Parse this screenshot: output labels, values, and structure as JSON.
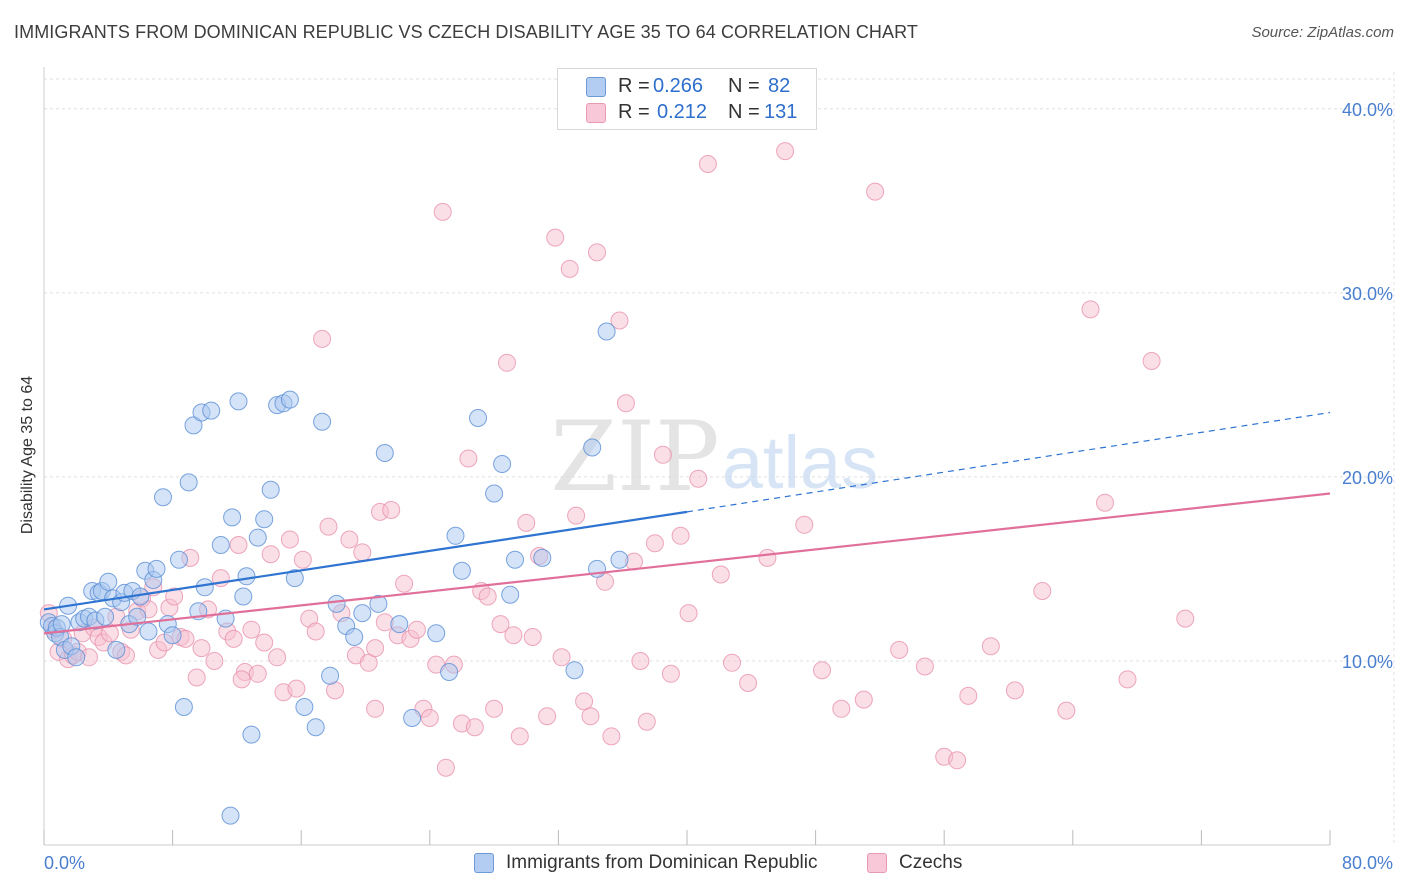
{
  "title": "IMMIGRANTS FROM DOMINICAN REPUBLIC VS CZECH DISABILITY AGE 35 TO 64 CORRELATION CHART",
  "source": "Source: ZipAtlas.com",
  "watermark": {
    "zip": "ZIP",
    "atlas": "atlas"
  },
  "legend_stats": [
    {
      "r_label": "R =",
      "r_value": "0.266",
      "n_label": "N =",
      "n_value": "82"
    },
    {
      "r_label": "R =",
      "r_value": "0.212",
      "n_label": "N =",
      "n_value": "131"
    }
  ],
  "colors": {
    "blue_fill": "#a9c8f0",
    "blue_stroke": "#5b8fd6",
    "blue_line": "#2e74d0",
    "pink_fill": "#f6bfd0",
    "pink_stroke": "#e892ae",
    "pink_line": "#e0709a",
    "tick_label": "#4a7fcf",
    "grid": "#e0e0e0"
  },
  "chart_data": {
    "type": "scatter",
    "title": "IMMIGRANTS FROM DOMINICAN REPUBLIC VS CZECH DISABILITY AGE 35 TO 64 CORRELATION CHART",
    "xlabel": "",
    "ylabel": "Disability Age 35 to 64",
    "xlim": [
      0,
      80
    ],
    "ylim": [
      0,
      42
    ],
    "x_tick_labels": [
      "0.0%",
      "80.0%"
    ],
    "y_ticks": [
      10,
      20,
      30,
      40
    ],
    "y_tick_labels": [
      "10.0%",
      "20.0%",
      "30.0%",
      "40.0%"
    ],
    "grid": true,
    "legend_position": "bottom",
    "series": [
      {
        "name": "Immigrants from Dominican Republic",
        "r": 0.266,
        "n": 82,
        "trend": {
          "x0": 0,
          "y0": 12.8,
          "x1": 40,
          "y1": 18.1,
          "dashed_to_x": 80,
          "dashed_to_y": 23.5
        },
        "points": [
          [
            0.3,
            12.1
          ],
          [
            0.5,
            11.9
          ],
          [
            0.7,
            11.5
          ],
          [
            0.8,
            11.8
          ],
          [
            1.0,
            11.3
          ],
          [
            1.1,
            12.0
          ],
          [
            1.3,
            10.6
          ],
          [
            1.5,
            13.0
          ],
          [
            1.7,
            10.8
          ],
          [
            2.0,
            10.2
          ],
          [
            2.2,
            12.1
          ],
          [
            2.5,
            12.3
          ],
          [
            2.8,
            12.4
          ],
          [
            3.0,
            13.8
          ],
          [
            3.2,
            12.2
          ],
          [
            3.4,
            13.7
          ],
          [
            3.6,
            13.8
          ],
          [
            3.8,
            12.4
          ],
          [
            4.0,
            14.3
          ],
          [
            4.3,
            13.4
          ],
          [
            4.5,
            10.6
          ],
          [
            4.8,
            13.2
          ],
          [
            5.0,
            13.7
          ],
          [
            5.3,
            12.0
          ],
          [
            5.5,
            13.8
          ],
          [
            5.8,
            12.4
          ],
          [
            6.0,
            13.5
          ],
          [
            6.3,
            14.9
          ],
          [
            6.5,
            11.6
          ],
          [
            6.8,
            14.4
          ],
          [
            7.0,
            15.0
          ],
          [
            7.4,
            18.9
          ],
          [
            7.7,
            12.0
          ],
          [
            8.0,
            11.4
          ],
          [
            8.4,
            15.5
          ],
          [
            8.7,
            7.5
          ],
          [
            9.0,
            19.7
          ],
          [
            9.3,
            22.8
          ],
          [
            9.6,
            12.7
          ],
          [
            9.8,
            23.5
          ],
          [
            10.0,
            14.0
          ],
          [
            10.4,
            23.6
          ],
          [
            11.0,
            16.3
          ],
          [
            11.3,
            12.3
          ],
          [
            11.7,
            17.8
          ],
          [
            12.1,
            24.1
          ],
          [
            12.4,
            13.5
          ],
          [
            12.6,
            14.6
          ],
          [
            12.9,
            6.0
          ],
          [
            13.3,
            16.7
          ],
          [
            13.7,
            17.7
          ],
          [
            14.1,
            19.3
          ],
          [
            14.5,
            23.9
          ],
          [
            14.9,
            24.0
          ],
          [
            15.3,
            24.2
          ],
          [
            15.6,
            14.5
          ],
          [
            16.2,
            7.5
          ],
          [
            16.9,
            6.4
          ],
          [
            17.3,
            23.0
          ],
          [
            17.8,
            9.2
          ],
          [
            18.2,
            13.1
          ],
          [
            18.8,
            11.9
          ],
          [
            19.3,
            11.3
          ],
          [
            19.8,
            12.6
          ],
          [
            20.8,
            13.1
          ],
          [
            21.2,
            21.3
          ],
          [
            22.1,
            12.0
          ],
          [
            22.9,
            6.9
          ],
          [
            24.4,
            11.5
          ],
          [
            25.2,
            9.4
          ],
          [
            25.6,
            16.8
          ],
          [
            26.0,
            14.9
          ],
          [
            27.0,
            23.2
          ],
          [
            28.0,
            19.1
          ],
          [
            28.5,
            20.7
          ],
          [
            29.0,
            13.6
          ],
          [
            29.3,
            15.5
          ],
          [
            31.0,
            15.6
          ],
          [
            33.0,
            9.5
          ],
          [
            34.1,
            21.6
          ],
          [
            34.4,
            15.0
          ],
          [
            35.8,
            15.5
          ],
          [
            35.0,
            27.9
          ],
          [
            11.6,
            1.6
          ]
        ]
      },
      {
        "name": "Czechs",
        "r": 0.212,
        "n": 131,
        "trend": {
          "x0": 0,
          "y0": 11.5,
          "x1": 80,
          "y1": 19.1
        },
        "points": [
          [
            0.3,
            12.6
          ],
          [
            0.6,
            11.7
          ],
          [
            0.9,
            10.5
          ],
          [
            1.2,
            11.2
          ],
          [
            1.5,
            10.1
          ],
          [
            1.8,
            10.3
          ],
          [
            2.1,
            10.5
          ],
          [
            2.4,
            11.5
          ],
          [
            2.8,
            10.2
          ],
          [
            3.1,
            11.8
          ],
          [
            3.4,
            11.3
          ],
          [
            3.7,
            11.0
          ],
          [
            4.1,
            11.5
          ],
          [
            4.5,
            12.4
          ],
          [
            4.8,
            10.5
          ],
          [
            5.1,
            10.3
          ],
          [
            5.4,
            11.7
          ],
          [
            5.8,
            12.7
          ],
          [
            6.1,
            13.4
          ],
          [
            6.5,
            12.8
          ],
          [
            6.8,
            14.0
          ],
          [
            7.1,
            10.6
          ],
          [
            7.5,
            11.0
          ],
          [
            7.8,
            12.9
          ],
          [
            8.1,
            13.5
          ],
          [
            8.5,
            11.3
          ],
          [
            8.8,
            11.2
          ],
          [
            9.1,
            15.6
          ],
          [
            9.5,
            9.1
          ],
          [
            9.8,
            10.7
          ],
          [
            10.2,
            12.8
          ],
          [
            10.6,
            10.0
          ],
          [
            11.0,
            14.5
          ],
          [
            11.4,
            11.6
          ],
          [
            11.8,
            11.2
          ],
          [
            12.1,
            16.3
          ],
          [
            12.5,
            9.4
          ],
          [
            12.9,
            11.7
          ],
          [
            13.3,
            9.3
          ],
          [
            13.7,
            11.0
          ],
          [
            14.1,
            15.8
          ],
          [
            14.5,
            10.2
          ],
          [
            14.9,
            8.3
          ],
          [
            15.3,
            16.6
          ],
          [
            15.7,
            8.5
          ],
          [
            16.1,
            15.5
          ],
          [
            16.5,
            12.3
          ],
          [
            16.9,
            11.6
          ],
          [
            17.3,
            27.5
          ],
          [
            17.7,
            17.3
          ],
          [
            18.1,
            8.4
          ],
          [
            18.5,
            12.6
          ],
          [
            19.0,
            16.6
          ],
          [
            19.4,
            10.3
          ],
          [
            19.8,
            15.9
          ],
          [
            20.2,
            9.9
          ],
          [
            20.6,
            7.4
          ],
          [
            20.9,
            18.1
          ],
          [
            21.2,
            12.1
          ],
          [
            21.6,
            18.2
          ],
          [
            22.0,
            11.4
          ],
          [
            22.4,
            14.2
          ],
          [
            22.8,
            11.2
          ],
          [
            23.2,
            11.7
          ],
          [
            23.6,
            7.4
          ],
          [
            24.0,
            6.9
          ],
          [
            24.4,
            9.8
          ],
          [
            24.8,
            34.4
          ],
          [
            25.0,
            4.2
          ],
          [
            25.5,
            9.8
          ],
          [
            26.0,
            6.6
          ],
          [
            26.4,
            21.0
          ],
          [
            26.8,
            6.4
          ],
          [
            27.2,
            13.8
          ],
          [
            27.6,
            13.5
          ],
          [
            28.0,
            7.4
          ],
          [
            28.4,
            12.0
          ],
          [
            28.8,
            26.2
          ],
          [
            29.2,
            11.4
          ],
          [
            29.6,
            5.9
          ],
          [
            30.0,
            17.5
          ],
          [
            30.4,
            11.3
          ],
          [
            30.8,
            15.7
          ],
          [
            31.3,
            7.0
          ],
          [
            31.8,
            33.0
          ],
          [
            32.2,
            10.2
          ],
          [
            32.7,
            31.3
          ],
          [
            33.1,
            17.9
          ],
          [
            33.6,
            7.8
          ],
          [
            34.0,
            7.0
          ],
          [
            34.4,
            32.2
          ],
          [
            34.9,
            14.3
          ],
          [
            35.3,
            5.9
          ],
          [
            35.8,
            28.5
          ],
          [
            36.2,
            24.0
          ],
          [
            36.7,
            15.4
          ],
          [
            37.1,
            10.0
          ],
          [
            37.5,
            6.7
          ],
          [
            38.0,
            16.4
          ],
          [
            38.5,
            21.2
          ],
          [
            39.0,
            9.3
          ],
          [
            39.6,
            16.8
          ],
          [
            40.1,
            12.6
          ],
          [
            40.7,
            19.9
          ],
          [
            41.3,
            37.0
          ],
          [
            42.1,
            14.7
          ],
          [
            42.8,
            9.9
          ],
          [
            43.8,
            8.8
          ],
          [
            45.0,
            15.6
          ],
          [
            46.1,
            37.7
          ],
          [
            47.3,
            17.4
          ],
          [
            48.4,
            9.5
          ],
          [
            49.6,
            7.4
          ],
          [
            51.0,
            7.9
          ],
          [
            51.7,
            35.5
          ],
          [
            53.2,
            10.6
          ],
          [
            54.8,
            9.7
          ],
          [
            56.0,
            4.8
          ],
          [
            56.8,
            4.6
          ],
          [
            57.5,
            8.1
          ],
          [
            58.9,
            10.8
          ],
          [
            60.4,
            8.4
          ],
          [
            62.1,
            13.8
          ],
          [
            63.6,
            7.3
          ],
          [
            65.1,
            29.1
          ],
          [
            66.0,
            18.6
          ],
          [
            67.4,
            9.0
          ],
          [
            68.9,
            26.3
          ],
          [
            71.0,
            12.3
          ],
          [
            20.6,
            10.7
          ],
          [
            12.3,
            9.0
          ]
        ]
      }
    ]
  }
}
